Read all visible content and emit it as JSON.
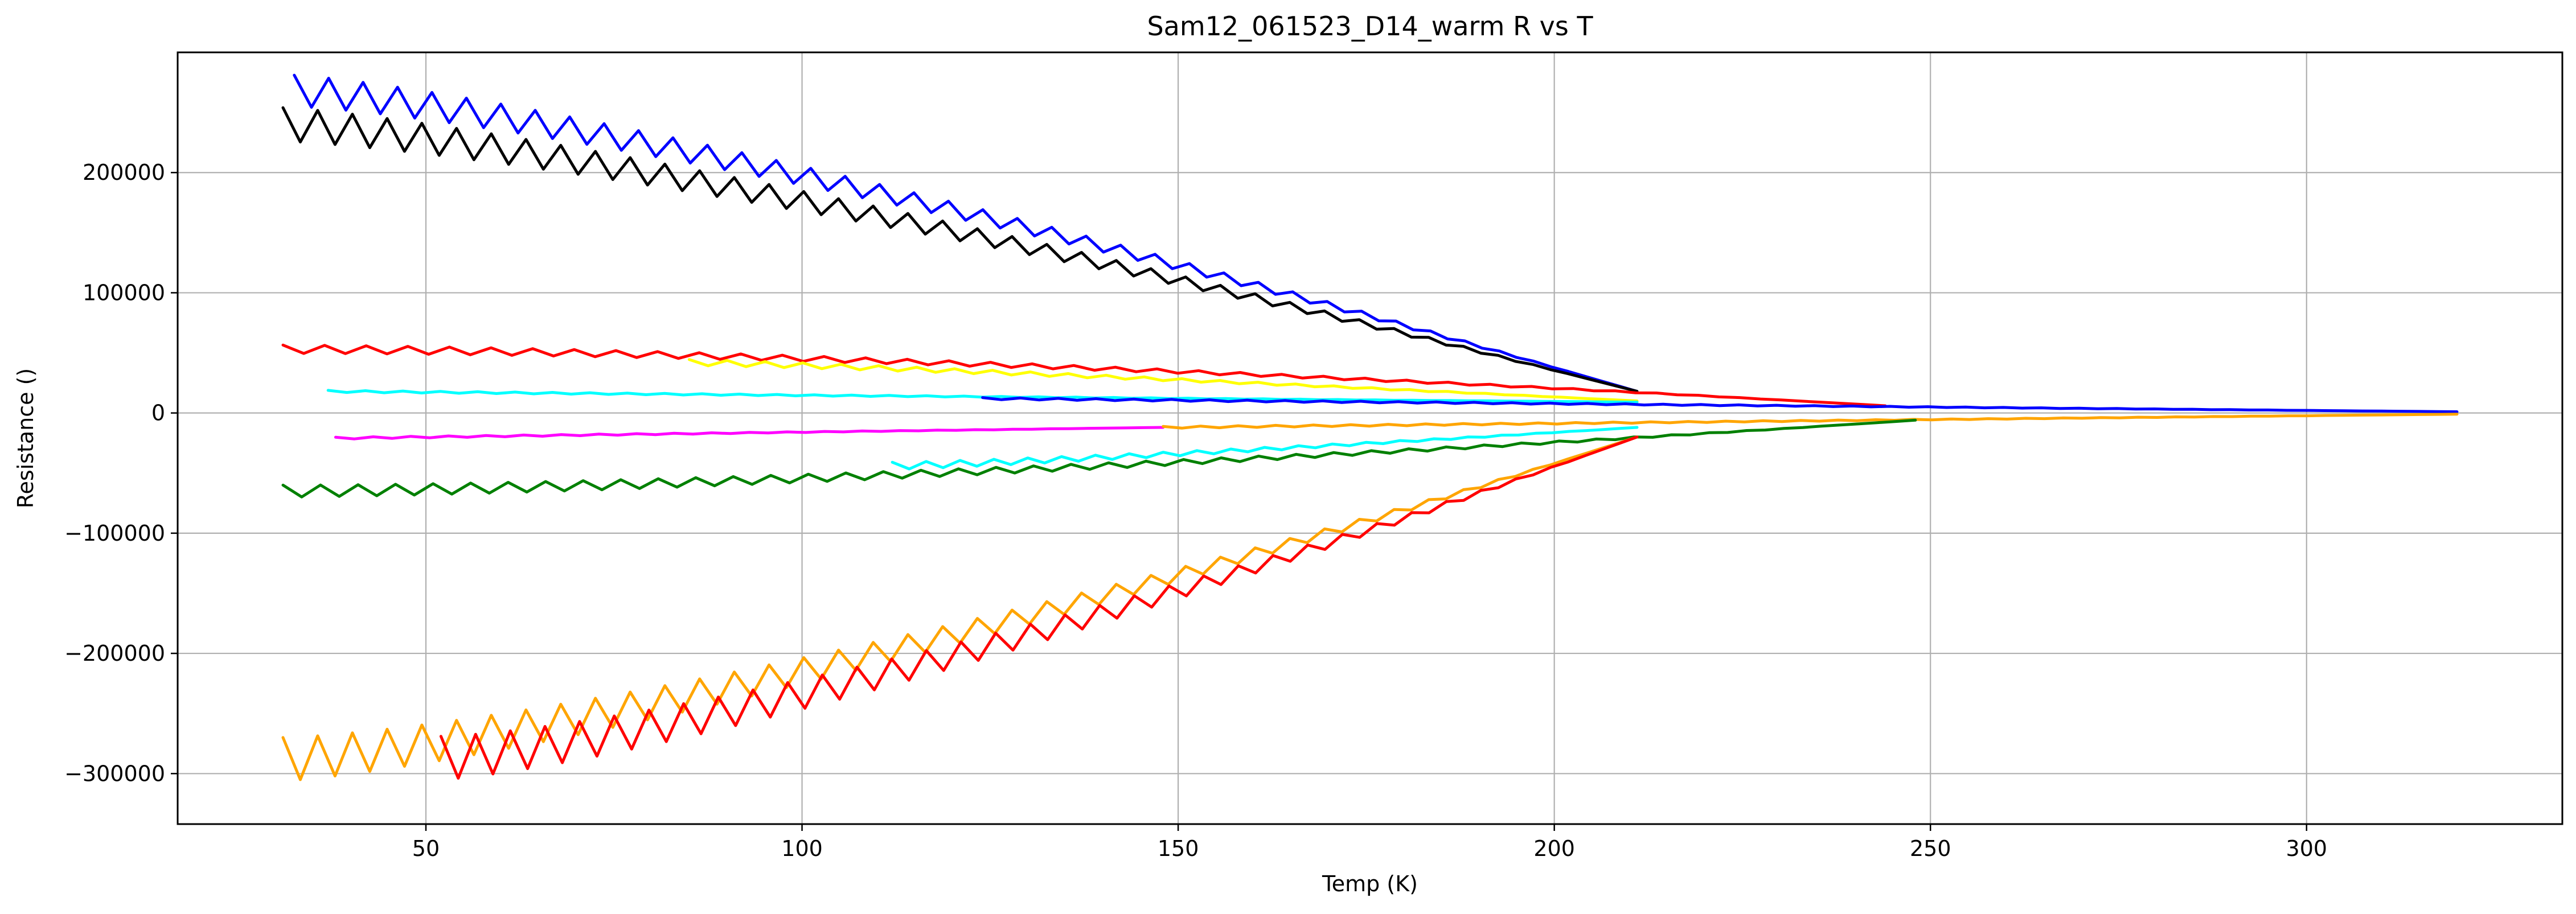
{
  "chart_data": {
    "type": "line",
    "title": "Sam12_061523_D14_warm R vs T",
    "xlabel": "Temp (K)",
    "ylabel": "Resistance ()",
    "xlim": [
      17,
      334
    ],
    "ylim": [
      -342000,
      300000
    ],
    "grid": true,
    "x_ticks": [
      50,
      100,
      150,
      200,
      250,
      300
    ],
    "x_tick_labels": [
      "50",
      "100",
      "150",
      "200",
      "250",
      "300"
    ],
    "y_ticks": [
      200000,
      100000,
      0,
      -100000,
      -200000,
      -300000
    ],
    "y_tick_labels": [
      "200000",
      "100000",
      "0",
      "−100000",
      "−200000",
      "−300000"
    ],
    "series": [
      {
        "color": "#0000ff",
        "kind": "zigzag",
        "x_start": 32.5,
        "x_end": 211,
        "y_start": 268000,
        "y_end": 18000,
        "amp": 13000,
        "period": 4.6,
        "shape": 1.3
      },
      {
        "color": "#000000",
        "kind": "zigzag",
        "x_start": 31,
        "x_end": 211,
        "y_start": 240000,
        "y_end": 18000,
        "amp": 14000,
        "period": 4.6,
        "shape": 1.3
      },
      {
        "color": "#ff0000",
        "kind": "zigzag",
        "x_start": 31,
        "x_end": 244,
        "y_start": 53000,
        "y_end": 6000,
        "amp": 3500,
        "period": 5.5,
        "shape": 1.6
      },
      {
        "color": "#ffff00",
        "kind": "zigzag",
        "x_start": 85,
        "x_end": 211,
        "y_start": 42000,
        "y_end": 10000,
        "amp": 2500,
        "period": 5.0,
        "shape": 1.2
      },
      {
        "color": "#00ffff",
        "kind": "zigzag",
        "x_start": 37,
        "x_end": 211,
        "y_start": 18000,
        "y_end": 9000,
        "amp": 800,
        "period": 5.0,
        "shape": 1.0
      },
      {
        "color": "#0000ff",
        "kind": "zigzag",
        "x_start": 124,
        "x_end": 320,
        "y_start": 12000,
        "y_end": 1000,
        "amp": 800,
        "period": 5.0,
        "shape": 1.0
      },
      {
        "color": "#ff00ff",
        "kind": "zigzag",
        "x_start": 38,
        "x_end": 148,
        "y_start": -21000,
        "y_end": -12000,
        "amp": 800,
        "period": 5.0,
        "shape": 1.0
      },
      {
        "color": "#ffa500",
        "kind": "zigzag",
        "x_start": 148,
        "x_end": 320,
        "y_start": -12000,
        "y_end": -1000,
        "amp": 800,
        "period": 5.0,
        "shape": 1.0
      },
      {
        "color": "#008000",
        "kind": "zigzag",
        "x_start": 31,
        "x_end": 248,
        "y_start": -65000,
        "y_end": -6000,
        "amp": 5000,
        "period": 5.0,
        "shape": 1.5
      },
      {
        "color": "#00ffff",
        "kind": "zigzag",
        "x_start": 112,
        "x_end": 211,
        "y_start": -44000,
        "y_end": -12000,
        "amp": 3000,
        "period": 4.5,
        "shape": 1.2
      },
      {
        "color": "#ffa500",
        "kind": "zigzag",
        "x_start": 31,
        "x_end": 211,
        "y_start": -288000,
        "y_end": -20000,
        "amp": 18000,
        "period": 4.6,
        "shape": 1.35
      },
      {
        "color": "#ff0000",
        "kind": "zigzag",
        "x_start": 52,
        "x_end": 211,
        "y_start": -287000,
        "y_end": -20000,
        "amp": 18000,
        "period": 4.6,
        "shape": 1.35
      }
    ]
  }
}
